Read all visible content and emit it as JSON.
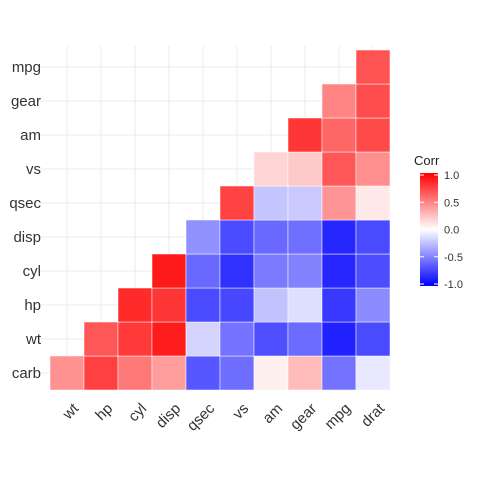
{
  "chart_data": {
    "type": "heatmap",
    "title": "",
    "xlabel": "",
    "ylabel": "",
    "x_categories": [
      "wt",
      "hp",
      "cyl",
      "disp",
      "qsec",
      "vs",
      "am",
      "gear",
      "mpg",
      "drat"
    ],
    "y_categories": [
      "carb",
      "wt",
      "hp",
      "cyl",
      "disp",
      "qsec",
      "vs",
      "am",
      "gear",
      "mpg"
    ],
    "lower_triangle": true,
    "grid": true,
    "cells": [
      {
        "x": "wt",
        "y": "carb",
        "value": 0.43
      },
      {
        "x": "hp",
        "y": "carb",
        "value": 0.75
      },
      {
        "x": "hp",
        "y": "wt",
        "value": 0.66
      },
      {
        "x": "cyl",
        "y": "carb",
        "value": 0.53
      },
      {
        "x": "cyl",
        "y": "wt",
        "value": 0.78
      },
      {
        "x": "cyl",
        "y": "hp",
        "value": 0.83
      },
      {
        "x": "disp",
        "y": "carb",
        "value": 0.39
      },
      {
        "x": "disp",
        "y": "wt",
        "value": 0.89
      },
      {
        "x": "disp",
        "y": "hp",
        "value": 0.79
      },
      {
        "x": "disp",
        "y": "cyl",
        "value": 0.9
      },
      {
        "x": "qsec",
        "y": "carb",
        "value": -0.66
      },
      {
        "x": "qsec",
        "y": "wt",
        "value": -0.17
      },
      {
        "x": "qsec",
        "y": "hp",
        "value": -0.71
      },
      {
        "x": "qsec",
        "y": "cyl",
        "value": -0.59
      },
      {
        "x": "qsec",
        "y": "disp",
        "value": -0.43
      },
      {
        "x": "vs",
        "y": "carb",
        "value": -0.57
      },
      {
        "x": "vs",
        "y": "wt",
        "value": -0.55
      },
      {
        "x": "vs",
        "y": "hp",
        "value": -0.72
      },
      {
        "x": "vs",
        "y": "cyl",
        "value": -0.81
      },
      {
        "x": "vs",
        "y": "disp",
        "value": -0.71
      },
      {
        "x": "vs",
        "y": "qsec",
        "value": 0.74
      },
      {
        "x": "am",
        "y": "carb",
        "value": 0.06
      },
      {
        "x": "am",
        "y": "wt",
        "value": -0.69
      },
      {
        "x": "am",
        "y": "hp",
        "value": -0.24
      },
      {
        "x": "am",
        "y": "cyl",
        "value": -0.52
      },
      {
        "x": "am",
        "y": "disp",
        "value": -0.59
      },
      {
        "x": "am",
        "y": "qsec",
        "value": -0.23
      },
      {
        "x": "am",
        "y": "vs",
        "value": 0.17
      },
      {
        "x": "gear",
        "y": "carb",
        "value": 0.27
      },
      {
        "x": "gear",
        "y": "wt",
        "value": -0.58
      },
      {
        "x": "gear",
        "y": "hp",
        "value": -0.13
      },
      {
        "x": "gear",
        "y": "cyl",
        "value": -0.49
      },
      {
        "x": "gear",
        "y": "disp",
        "value": -0.56
      },
      {
        "x": "gear",
        "y": "qsec",
        "value": -0.21
      },
      {
        "x": "gear",
        "y": "vs",
        "value": 0.21
      },
      {
        "x": "gear",
        "y": "am",
        "value": 0.79
      },
      {
        "x": "mpg",
        "y": "carb",
        "value": -0.55
      },
      {
        "x": "mpg",
        "y": "wt",
        "value": -0.87
      },
      {
        "x": "mpg",
        "y": "hp",
        "value": -0.78
      },
      {
        "x": "mpg",
        "y": "cyl",
        "value": -0.85
      },
      {
        "x": "mpg",
        "y": "disp",
        "value": -0.85
      },
      {
        "x": "mpg",
        "y": "qsec",
        "value": 0.42
      },
      {
        "x": "mpg",
        "y": "vs",
        "value": 0.66
      },
      {
        "x": "mpg",
        "y": "am",
        "value": 0.6
      },
      {
        "x": "mpg",
        "y": "gear",
        "value": 0.48
      },
      {
        "x": "drat",
        "y": "carb",
        "value": -0.09
      },
      {
        "x": "drat",
        "y": "wt",
        "value": -0.71
      },
      {
        "x": "drat",
        "y": "hp",
        "value": -0.45
      },
      {
        "x": "drat",
        "y": "cyl",
        "value": -0.7
      },
      {
        "x": "drat",
        "y": "disp",
        "value": -0.71
      },
      {
        "x": "drat",
        "y": "qsec",
        "value": 0.09
      },
      {
        "x": "drat",
        "y": "vs",
        "value": 0.44
      },
      {
        "x": "drat",
        "y": "am",
        "value": 0.71
      },
      {
        "x": "drat",
        "y": "gear",
        "value": 0.7
      },
      {
        "x": "drat",
        "y": "mpg",
        "value": 0.68
      }
    ],
    "legend": {
      "title": "Corr",
      "placement": "right",
      "range": [
        -1,
        1
      ],
      "ticks": [
        1.0,
        0.5,
        0.0,
        -0.5,
        -1.0
      ],
      "tick_labels": [
        "1.0",
        "0.5",
        "0.0",
        "-0.5",
        "-1.0"
      ]
    },
    "colors": {
      "low": "#0000ff",
      "mid": "#ffffff",
      "high": "#ff0000",
      "grid": "#ebebeb",
      "text": "#333333"
    }
  }
}
